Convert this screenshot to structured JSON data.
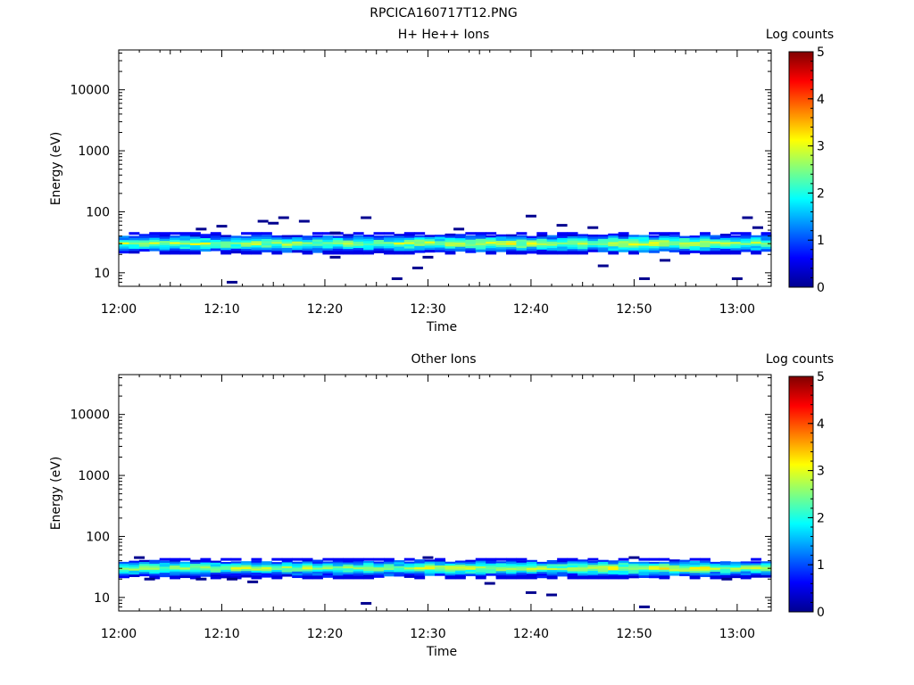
{
  "figure_title": "RPCICA160717T12.PNG",
  "chart_data": [
    {
      "type": "heatmap",
      "title": "H+ He++ Ions",
      "xlabel": "Time",
      "ylabel": "Energy (eV)",
      "y_scale": "log",
      "ylim": [
        6,
        45000
      ],
      "x_ticks": [
        "12:00",
        "12:10",
        "12:20",
        "12:30",
        "12:40",
        "12:50",
        "13:00"
      ],
      "y_ticks": [
        "10",
        "100",
        "1000",
        "10000"
      ],
      "colorbar": {
        "label": "Log counts",
        "range": [
          0,
          5
        ],
        "ticks": [
          "0",
          "1",
          "2",
          "3",
          "4",
          "5"
        ]
      },
      "band": {
        "center_eV": 30,
        "lower_eV": 22,
        "upper_eV": 42
      },
      "points": [
        {
          "t": "12:08",
          "e": 52
        },
        {
          "t": "12:10",
          "e": 58
        },
        {
          "t": "12:11",
          "e": 7
        },
        {
          "t": "12:14",
          "e": 70
        },
        {
          "t": "12:15",
          "e": 65
        },
        {
          "t": "12:16",
          "e": 80
        },
        {
          "t": "12:18",
          "e": 70
        },
        {
          "t": "12:21",
          "e": 45
        },
        {
          "t": "12:21",
          "e": 18
        },
        {
          "t": "12:24",
          "e": 80
        },
        {
          "t": "12:27",
          "e": 8
        },
        {
          "t": "12:29",
          "e": 12
        },
        {
          "t": "12:30",
          "e": 18
        },
        {
          "t": "12:33",
          "e": 52
        },
        {
          "t": "12:40",
          "e": 85
        },
        {
          "t": "12:43",
          "e": 60
        },
        {
          "t": "12:46",
          "e": 55
        },
        {
          "t": "12:47",
          "e": 13
        },
        {
          "t": "12:51",
          "e": 8
        },
        {
          "t": "12:53",
          "e": 16
        },
        {
          "t": "13:00",
          "e": 8
        },
        {
          "t": "13:01",
          "e": 80
        },
        {
          "t": "13:02",
          "e": 55
        }
      ]
    },
    {
      "type": "heatmap",
      "title": "Other Ions",
      "xlabel": "Time",
      "ylabel": "Energy (eV)",
      "y_scale": "log",
      "ylim": [
        6,
        45000
      ],
      "x_ticks": [
        "12:00",
        "12:10",
        "12:20",
        "12:30",
        "12:40",
        "12:50",
        "13:00"
      ],
      "y_ticks": [
        "10",
        "100",
        "1000",
        "10000"
      ],
      "colorbar": {
        "label": "Log counts",
        "range": [
          0,
          5
        ],
        "ticks": [
          "0",
          "1",
          "2",
          "3",
          "4",
          "5"
        ]
      },
      "band": {
        "center_eV": 30,
        "lower_eV": 22,
        "upper_eV": 40
      },
      "points": [
        {
          "t": "12:02",
          "e": 45
        },
        {
          "t": "12:03",
          "e": 20
        },
        {
          "t": "12:08",
          "e": 20
        },
        {
          "t": "12:11",
          "e": 20
        },
        {
          "t": "12:13",
          "e": 18
        },
        {
          "t": "12:24",
          "e": 8
        },
        {
          "t": "12:30",
          "e": 45
        },
        {
          "t": "12:36",
          "e": 17
        },
        {
          "t": "12:40",
          "e": 12
        },
        {
          "t": "12:42",
          "e": 11
        },
        {
          "t": "12:50",
          "e": 45
        },
        {
          "t": "12:51",
          "e": 7
        },
        {
          "t": "12:59",
          "e": 20
        }
      ]
    }
  ]
}
